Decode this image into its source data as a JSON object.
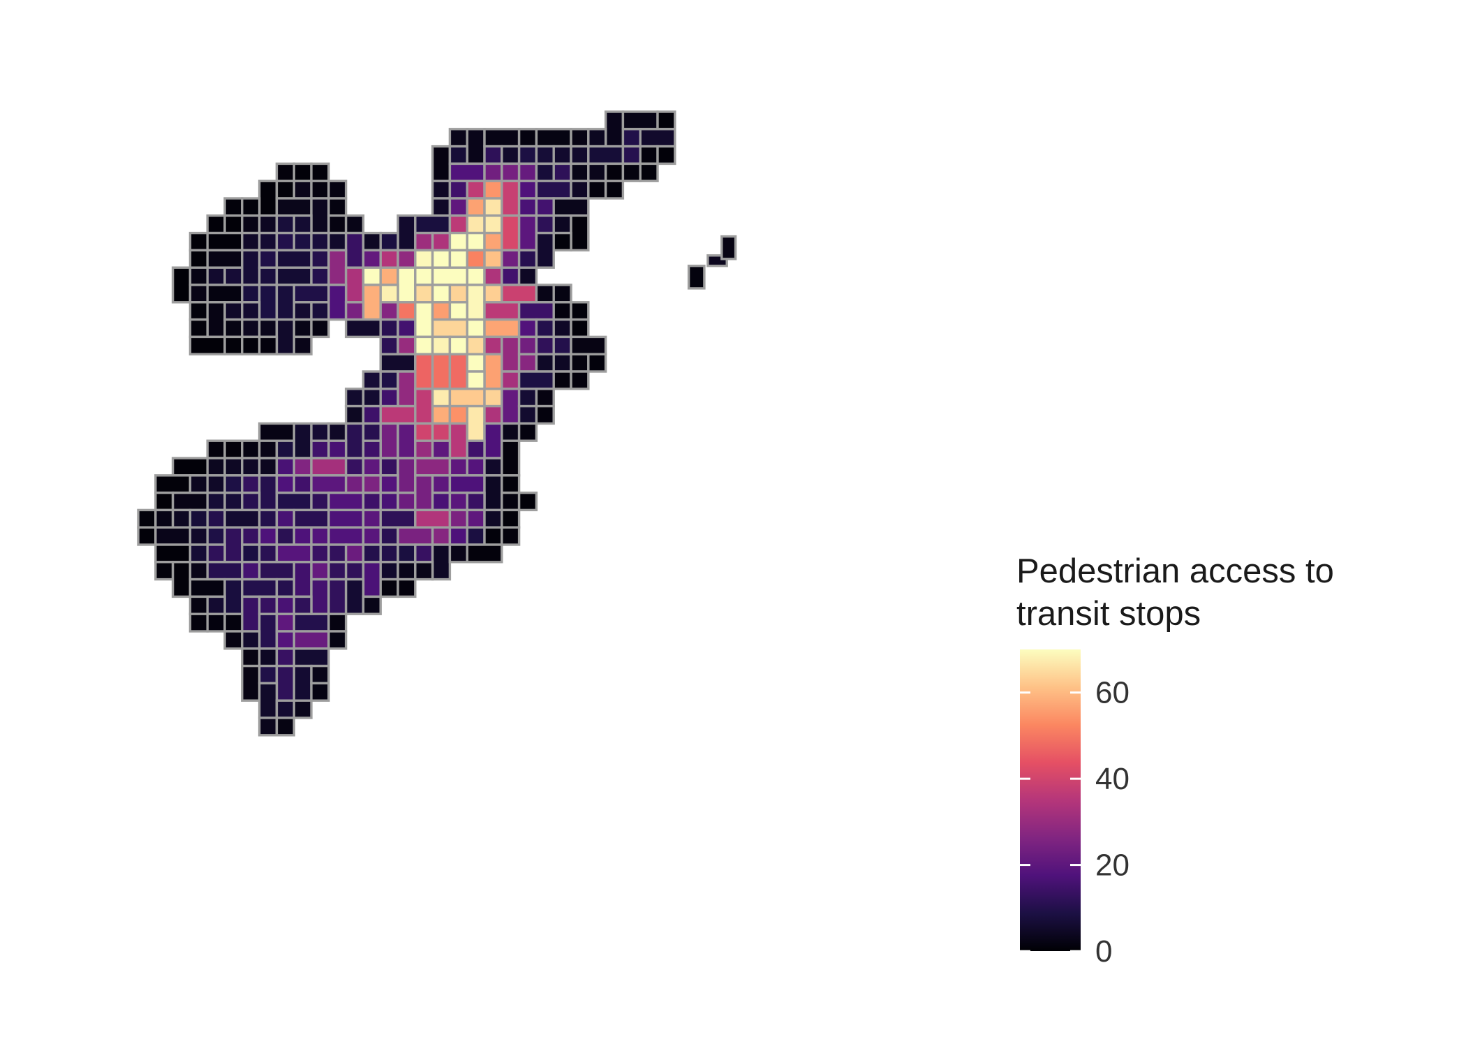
{
  "legend": {
    "title_line1": "Pedestrian access to",
    "title_line2": "transit stops",
    "scale_min": 0,
    "scale_max": 70,
    "ticks": [
      {
        "value": 0,
        "label": "0"
      },
      {
        "value": 20,
        "label": "20"
      },
      {
        "value": 40,
        "label": "40"
      },
      {
        "value": 60,
        "label": "60"
      }
    ],
    "palette": "magma",
    "colors": [
      "#000004",
      "#1c1044",
      "#4f127b",
      "#812581",
      "#b5367a",
      "#e55064",
      "#fb8761",
      "#fec287",
      "#fcfdbf"
    ]
  },
  "map": {
    "cell_border_color": "#9e9e9e",
    "background": "#ffffff"
  }
}
